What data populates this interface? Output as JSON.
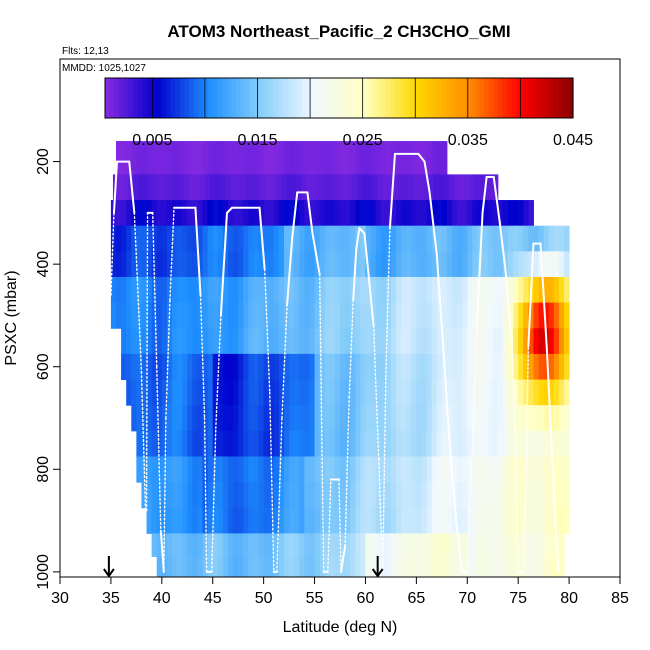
{
  "chart_data": {
    "type": "heatmap",
    "title": "ATOM3 Northeast_Pacific_2 CH3CHO_GMI",
    "flights_label": "Flts: 12,13",
    "dates_label": "MMDD: 1025,1027",
    "xlabel": "Latitude (deg N)",
    "ylabel": "PSXC (mbar)",
    "xlim": [
      30,
      85
    ],
    "ylim": [
      1010,
      0
    ],
    "x_ticks": [
      "30",
      "35",
      "40",
      "45",
      "50",
      "55",
      "60",
      "65",
      "70",
      "75",
      "80",
      "85"
    ],
    "y_ticks": [
      {
        "value": 200,
        "label": "200"
      },
      {
        "value": 400,
        "label": "400"
      },
      {
        "value": 600,
        "label": "600"
      },
      {
        "value": 800,
        "label": "800"
      },
      {
        "value": 1000,
        "label": "1000"
      }
    ],
    "colorbar": {
      "range": [
        0.0005,
        0.045
      ],
      "tick_values": [
        0.005,
        0.015,
        0.025,
        0.035,
        0.045
      ],
      "tick_labels": [
        "0.005",
        "0.015",
        "0.025",
        "0.035",
        "0.045"
      ],
      "colors": [
        "#8a2be2",
        "#0000cd",
        "#1e90ff",
        "#87cefa",
        "#f0f8ff",
        "#ffffc0",
        "#ffd700",
        "#ff8c00",
        "#ff0000",
        "#8b0000"
      ]
    },
    "rows": [
      {
        "p": 200,
        "x0": 35.5,
        "x1": 68.0,
        "mode": "top"
      },
      {
        "p": 250,
        "x0": 35.2,
        "x1": 73.0,
        "mode": "top2"
      },
      {
        "p": 300,
        "x0": 35.0,
        "x1": 76.5,
        "mode": "deep"
      },
      {
        "p": 350,
        "x0": 35.0,
        "x1": 80.0,
        "mode": "upper"
      },
      {
        "p": 400,
        "x0": 35.0,
        "x1": 80.0,
        "mode": "upper"
      },
      {
        "p": 450,
        "x0": 35.0,
        "x1": 80.0,
        "mode": "mid"
      },
      {
        "p": 500,
        "x0": 35.0,
        "x1": 80.0,
        "mode": "mid"
      },
      {
        "p": 550,
        "x0": 36.0,
        "x1": 80.0,
        "mode": "mid"
      },
      {
        "p": 600,
        "x0": 36.0,
        "x1": 80.0,
        "mode": "low"
      },
      {
        "p": 650,
        "x0": 36.5,
        "x1": 80.0,
        "mode": "low"
      },
      {
        "p": 700,
        "x0": 37.0,
        "x1": 80.0,
        "mode": "low"
      },
      {
        "p": 750,
        "x0": 37.5,
        "x1": 80.0,
        "mode": "low"
      },
      {
        "p": 800,
        "x0": 37.5,
        "x1": 80.0,
        "mode": "bottom"
      },
      {
        "p": 850,
        "x0": 38.0,
        "x1": 80.0,
        "mode": "bottom"
      },
      {
        "p": 900,
        "x0": 38.5,
        "x1": 80.0,
        "mode": "bottom"
      },
      {
        "p": 950,
        "x0": 39.0,
        "x1": 79.5,
        "mode": "surface"
      },
      {
        "p": 990,
        "x0": 39.5,
        "x1": 79.5,
        "mode": "surface"
      }
    ],
    "hotspot": {
      "center_lat": 77.5,
      "center_p": 540,
      "lat_sd": 2.5,
      "p_sd": 110,
      "peak": 0.042,
      "lat_min": 73.5,
      "p_min": 360,
      "p_max": 700
    },
    "flight_track": [
      [
        35.0,
        460
      ],
      [
        35.3,
        300
      ],
      [
        35.6,
        200
      ],
      [
        36.8,
        200
      ],
      [
        37.3,
        300
      ],
      [
        37.6,
        430
      ],
      [
        38.0,
        610
      ],
      [
        38.4,
        880
      ],
      [
        38.5,
        880
      ],
      [
        38.6,
        300
      ],
      [
        39.1,
        300
      ],
      [
        39.5,
        600
      ],
      [
        39.9,
        920
      ],
      [
        40.2,
        1000
      ],
      [
        40.4,
        700
      ],
      [
        40.8,
        470
      ],
      [
        41.2,
        290
      ],
      [
        43.3,
        290
      ],
      [
        43.8,
        460
      ],
      [
        44.2,
        700
      ],
      [
        44.4,
        1000
      ],
      [
        44.9,
        1000
      ],
      [
        45.3,
        720
      ],
      [
        45.8,
        500
      ],
      [
        46.4,
        300
      ],
      [
        46.9,
        290
      ],
      [
        49.6,
        290
      ],
      [
        50.1,
        410
      ],
      [
        50.6,
        650
      ],
      [
        51.0,
        1000
      ],
      [
        51.3,
        1000
      ],
      [
        51.8,
        700
      ],
      [
        52.3,
        480
      ],
      [
        52.8,
        350
      ],
      [
        53.3,
        260
      ],
      [
        54.3,
        260
      ],
      [
        54.8,
        340
      ],
      [
        55.5,
        420
      ],
      [
        55.9,
        1000
      ],
      [
        56.3,
        1000
      ],
      [
        56.6,
        820
      ],
      [
        57.4,
        820
      ],
      [
        57.6,
        1000
      ],
      [
        58.0,
        950
      ],
      [
        58.4,
        660
      ],
      [
        58.8,
        470
      ],
      [
        59.1,
        370
      ],
      [
        59.4,
        330
      ],
      [
        59.9,
        340
      ],
      [
        60.3,
        420
      ],
      [
        60.8,
        520
      ],
      [
        61.3,
        780
      ],
      [
        61.7,
        1000
      ],
      [
        62.0,
        620
      ],
      [
        62.4,
        330
      ],
      [
        62.9,
        185
      ],
      [
        65.2,
        185
      ],
      [
        65.8,
        200
      ],
      [
        66.3,
        260
      ],
      [
        67.0,
        380
      ],
      [
        67.6,
        550
      ],
      [
        68.3,
        760
      ],
      [
        68.9,
        900
      ],
      [
        69.5,
        1000
      ],
      [
        70.0,
        1000
      ],
      [
        70.5,
        760
      ],
      [
        71.0,
        500
      ],
      [
        71.5,
        300
      ],
      [
        71.9,
        230
      ],
      [
        72.6,
        230
      ],
      [
        73.2,
        320
      ],
      [
        73.8,
        420
      ],
      [
        74.4,
        560
      ],
      [
        74.8,
        760
      ],
      [
        75.0,
        1000
      ],
      [
        75.5,
        1000
      ],
      [
        75.8,
        800
      ],
      [
        76.0,
        560
      ],
      [
        76.5,
        360
      ],
      [
        77.2,
        360
      ],
      [
        77.8,
        560
      ],
      [
        78.3,
        760
      ],
      [
        78.8,
        960
      ],
      [
        79.0,
        1000
      ]
    ],
    "arrows_lat": [
      34.8,
      61.2
    ]
  }
}
